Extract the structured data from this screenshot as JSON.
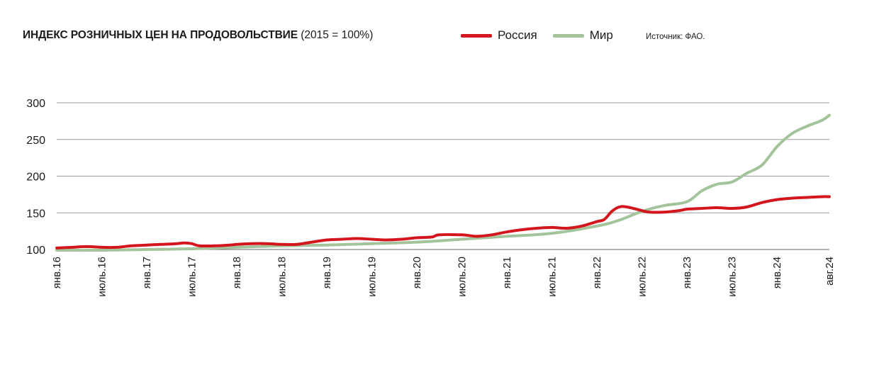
{
  "header": {
    "title_bold": "ИНДЕКС РОЗНИЧНЫХ ЦЕН НА ПРОДОВОЛЬСТВИЕ",
    "title_rest": "(2015 = 100%)",
    "source": "Источник: ФАО."
  },
  "colors": {
    "russia": "#d3161d",
    "world": "#a3c49b",
    "grid": "#9a9a9a"
  },
  "chart_data": {
    "type": "line",
    "title": "ИНДЕКС РОЗНИЧНЫХ ЦЕН НА ПРОДОВОЛЬСТВИЕ (2015 = 100%)",
    "xlabel": "",
    "ylabel": "",
    "ylim": [
      100,
      300
    ],
    "yticks": [
      300,
      250,
      200,
      150,
      100
    ],
    "grid": "horizontal",
    "legend": "top",
    "x_tick_labels": [
      "янв.16",
      "июль.16",
      "янв.17",
      "июль.17",
      "янв.18",
      "июль.18",
      "янв.19",
      "июль.19",
      "янв.20",
      "июль.20",
      "янв.21",
      "июль.21",
      "янв.22",
      "июль.22",
      "янв.23",
      "июль.23",
      "янв.24",
      "авг.24"
    ],
    "series": [
      {
        "name": "Россия",
        "color": "#d3161d",
        "points": [
          [
            "янв.16",
            102
          ],
          [
            "мар.16",
            103
          ],
          [
            "май.16",
            104
          ],
          [
            "июль.16",
            103
          ],
          [
            "сен.16",
            103
          ],
          [
            "ноя.16",
            105
          ],
          [
            "янв.17",
            106
          ],
          [
            "мар.17",
            107
          ],
          [
            "май.17",
            108
          ],
          [
            "июнь.17",
            109
          ],
          [
            "июль.17",
            108
          ],
          [
            "авг.17",
            105
          ],
          [
            "окт.17",
            105
          ],
          [
            "дек.17",
            106
          ],
          [
            "янв.18",
            107
          ],
          [
            "мар.18",
            108
          ],
          [
            "май.18",
            108
          ],
          [
            "июль.18",
            107
          ],
          [
            "сен.18",
            107
          ],
          [
            "ноя.18",
            110
          ],
          [
            "янв.19",
            113
          ],
          [
            "мар.19",
            114
          ],
          [
            "май.19",
            115
          ],
          [
            "июль.19",
            114
          ],
          [
            "сен.19",
            113
          ],
          [
            "ноя.19",
            114
          ],
          [
            "янв.20",
            116
          ],
          [
            "мар.20",
            117
          ],
          [
            "апр.20",
            120
          ],
          [
            "июль.20",
            120
          ],
          [
            "сен.20",
            118
          ],
          [
            "ноя.20",
            120
          ],
          [
            "янв.21",
            124
          ],
          [
            "мар.21",
            127
          ],
          [
            "май.21",
            129
          ],
          [
            "июль.21",
            130
          ],
          [
            "сен.21",
            129
          ],
          [
            "ноя.21",
            132
          ],
          [
            "янв.22",
            138
          ],
          [
            "фев.22",
            141
          ],
          [
            "мар.22",
            152
          ],
          [
            "апр.22",
            158
          ],
          [
            "май.22",
            158
          ],
          [
            "июль.22",
            153
          ],
          [
            "авг.22",
            151
          ],
          [
            "окт.22",
            151
          ],
          [
            "дек.22",
            153
          ],
          [
            "янв.23",
            155
          ],
          [
            "мар.23",
            156
          ],
          [
            "май.23",
            157
          ],
          [
            "июль.23",
            156
          ],
          [
            "сен.23",
            158
          ],
          [
            "ноя.23",
            164
          ],
          [
            "янв.24",
            168
          ],
          [
            "мар.24",
            170
          ],
          [
            "май.24",
            171
          ],
          [
            "июль.24",
            172
          ],
          [
            "авг.24",
            172
          ]
        ]
      },
      {
        "name": "Мир",
        "color": "#a3c49b",
        "points": [
          [
            "янв.16",
            99
          ],
          [
            "июль.16",
            99
          ],
          [
            "янв.17",
            100
          ],
          [
            "июль.17",
            101
          ],
          [
            "янв.18",
            103
          ],
          [
            "июль.18",
            105
          ],
          [
            "янв.19",
            106
          ],
          [
            "июль.19",
            108
          ],
          [
            "янв.20",
            110
          ],
          [
            "июль.20",
            114
          ],
          [
            "янв.21",
            118
          ],
          [
            "июль.21",
            122
          ],
          [
            "янв.22",
            132
          ],
          [
            "апр.22",
            140
          ],
          [
            "июль.22",
            152
          ],
          [
            "окт.22",
            160
          ],
          [
            "янв.23",
            165
          ],
          [
            "мар.23",
            180
          ],
          [
            "май.23",
            189
          ],
          [
            "июль.23",
            192
          ],
          [
            "сен.23",
            204
          ],
          [
            "ноя.23",
            215
          ],
          [
            "янв.24",
            240
          ],
          [
            "мар.24",
            258
          ],
          [
            "май.24",
            268
          ],
          [
            "июль.24",
            276
          ],
          [
            "авг.24",
            283
          ]
        ]
      }
    ]
  }
}
